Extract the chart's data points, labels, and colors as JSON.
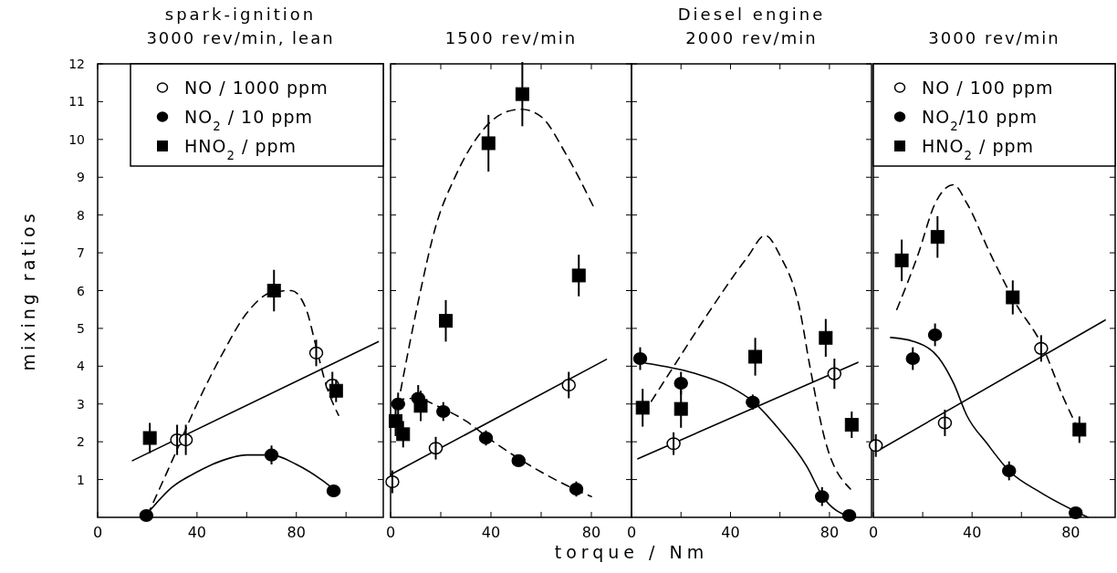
{
  "chart_data": [
    {
      "type": "scatter",
      "title": "spark-ignition",
      "subtitle": "3000 rev/min, lean",
      "ylabel": "mixing ratios",
      "xlim": [
        0,
        115
      ],
      "xticks": [
        0,
        {
          "value": 20,
          "label": null
        },
        40,
        {
          "value": 60,
          "label": null
        },
        80,
        {
          "value": 100,
          "label": null
        }
      ],
      "ylim": [
        0,
        12
      ],
      "yticks": [
        1,
        2,
        3,
        4,
        5,
        6,
        7,
        8,
        9,
        10,
        11,
        12
      ],
      "legend": "top right",
      "series": [
        {
          "type": "line",
          "color": "#000000",
          "line_style": "solid",
          "x": [
            14,
            113
          ],
          "values": [
            1.5,
            4.65
          ]
        },
        {
          "type": "line",
          "color": "#000000",
          "line_style": "solid",
          "x": [
            20,
            30,
            40,
            50,
            60,
            70,
            80,
            90,
            95
          ],
          "values": [
            0.1,
            0.8,
            1.2,
            1.5,
            1.65,
            1.65,
            1.4,
            1.0,
            0.75
          ]
        },
        {
          "type": "line",
          "color": "#000000",
          "line_style": "dashed",
          "x": [
            20,
            30,
            40,
            50,
            60,
            70,
            78,
            84,
            88,
            92,
            97
          ],
          "values": [
            0.05,
            1.5,
            3.0,
            4.3,
            5.4,
            5.95,
            6.0,
            5.5,
            4.5,
            3.5,
            2.7
          ]
        },
        {
          "name": "NO / 1000 ppm",
          "color": "#ffffff",
          "marker": "circle",
          "x": [
            32,
            35.5,
            88,
            94.5
          ],
          "values": [
            2.05,
            2.05,
            4.35,
            3.5
          ],
          "errors": [
            0.4,
            0.4,
            0.35,
            0.35
          ]
        },
        {
          "name": "NO$_{2}$ / 10 ppm",
          "color": "#000000",
          "marker": "circle",
          "x": [
            19.6,
            70,
            95
          ],
          "values": [
            0.05,
            1.65,
            0.7
          ],
          "errors": [
            null,
            0.25,
            0.15
          ]
        },
        {
          "name": "HNO$_{2}$ / ppm",
          "color": "#000000",
          "marker": "square",
          "x": [
            21,
            71,
            96
          ],
          "values": [
            2.1,
            6.0,
            3.35
          ],
          "errors": [
            0.4,
            0.55,
            0.3
          ]
        }
      ]
    },
    {
      "type": "scatter",
      "subtitle": "1500 rev/min",
      "xlabel": "torque / Nm",
      "xlim": [
        0,
        96
      ],
      "xticks": [
        0,
        {
          "value": 20,
          "label": null
        },
        40,
        {
          "value": 60,
          "label": null
        },
        80
      ],
      "ylim": [
        0,
        12
      ],
      "yticks": [
        1,
        2,
        3,
        4,
        5,
        6,
        7,
        8,
        9,
        10,
        11,
        12
      ],
      "tick_labels": "x",
      "series": [
        {
          "type": "line",
          "color": "#000000",
          "line_style": "solid",
          "x": [
            0,
            86
          ],
          "values": [
            1.13,
            4.18
          ]
        },
        {
          "type": "line",
          "color": "#000000",
          "line_style": "dashed",
          "x": [
            2,
            10,
            20,
            30,
            40,
            50,
            60,
            70,
            80
          ],
          "values": [
            3.1,
            3.15,
            2.9,
            2.55,
            2.05,
            1.6,
            1.2,
            0.85,
            0.55
          ]
        },
        {
          "type": "line",
          "color": "#000000",
          "line_style": "dashed",
          "x": [
            4,
            11,
            18,
            26,
            35,
            45,
            52,
            60,
            70,
            81
          ],
          "values": [
            3.35,
            5.7,
            7.7,
            9.05,
            10.1,
            10.7,
            10.8,
            10.6,
            9.6,
            8.2
          ]
        },
        {
          "color": "#ffffff",
          "marker": "circle",
          "x": [
            0.7,
            18,
            71
          ],
          "values": [
            0.94,
            1.83,
            3.5
          ],
          "errors": [
            0.3,
            0.3,
            0.35
          ]
        },
        {
          "color": "#000000",
          "marker": "circle",
          "x": [
            3,
            11,
            21,
            38,
            51,
            74
          ],
          "values": [
            3.0,
            3.15,
            2.8,
            2.1,
            1.5,
            0.75
          ],
          "errors": [
            0.3,
            0.35,
            0.25,
            0.2,
            0.15,
            0.2
          ]
        },
        {
          "color": "#000000",
          "marker": "square",
          "x": [
            2,
            5,
            12,
            22,
            39,
            52.5,
            75
          ],
          "values": [
            2.55,
            2.2,
            2.95,
            5.2,
            9.9,
            11.2,
            6.4
          ],
          "errors": [
            0.4,
            0.35,
            0.4,
            0.55,
            0.75,
            0.85,
            0.55
          ]
        }
      ]
    },
    {
      "type": "scatter",
      "title": "Diesel engine",
      "subtitle": "2000 rev/min",
      "xlim": [
        0,
        97
      ],
      "xticks": [
        0,
        {
          "value": 20,
          "label": null
        },
        40,
        {
          "value": 60,
          "label": null
        },
        80
      ],
      "ylim": [
        0,
        12
      ],
      "yticks": [
        1,
        2,
        3,
        4,
        5,
        6,
        7,
        8,
        9,
        10,
        11,
        12
      ],
      "tick_labels": "x",
      "series": [
        {
          "type": "line",
          "color": "#000000",
          "line_style": "solid",
          "x": [
            2.6,
            91.5
          ],
          "values": [
            1.55,
            4.1
          ]
        },
        {
          "type": "line",
          "color": "#000000",
          "line_style": "solid",
          "x": [
            5.5,
            25,
            40,
            49,
            60,
            71,
            77,
            88.5
          ],
          "values": [
            4.08,
            3.82,
            3.45,
            3.07,
            2.3,
            1.33,
            0.58,
            0
          ]
        },
        {
          "type": "line",
          "color": "#000000",
          "line_style": "dashed",
          "x": [
            8,
            17.4,
            32,
            47,
            54,
            60,
            68,
            72,
            78,
            88.5
          ],
          "values": [
            3.07,
            4.03,
            5.5,
            6.9,
            7.46,
            6.93,
            5.5,
            4.03,
            2.1,
            0.75
          ]
        },
        {
          "color": "#ffffff",
          "marker": "circle",
          "x": [
            17,
            82
          ],
          "values": [
            1.95,
            3.8
          ],
          "errors": [
            0.3,
            0.4
          ]
        },
        {
          "color": "#000000",
          "marker": "circle",
          "x": [
            3.5,
            20,
            49,
            77,
            88
          ],
          "values": [
            4.2,
            3.55,
            3.05,
            0.55,
            0.05
          ],
          "errors": [
            0.3,
            0.3,
            0.2,
            0.25,
            null
          ]
        },
        {
          "color": "#000000",
          "marker": "square",
          "x": [
            4.5,
            20,
            50,
            78.5,
            89
          ],
          "values": [
            2.9,
            2.87,
            4.25,
            4.75,
            2.45
          ],
          "errors": [
            0.5,
            0.5,
            0.5,
            0.5,
            0.35
          ]
        }
      ]
    },
    {
      "type": "scatter",
      "subtitle": "3000 rev/min",
      "xlim": [
        0,
        98
      ],
      "xticks": [
        0,
        {
          "value": 20,
          "label": null
        },
        40,
        {
          "value": 60,
          "label": null
        },
        80
      ],
      "ylim": [
        0,
        12
      ],
      "yticks": [
        1,
        2,
        3,
        4,
        5,
        6,
        7,
        8,
        9,
        10,
        11,
        12
      ],
      "tick_labels": "x",
      "legend": "top",
      "series": [
        {
          "type": "line",
          "color": "#000000",
          "line_style": "solid",
          "x": [
            1.5,
            94
          ],
          "values": [
            1.75,
            5.22
          ]
        },
        {
          "type": "line",
          "color": "#000000",
          "line_style": "solid",
          "x": [
            7,
            16,
            26.5,
            32.5,
            38,
            46,
            55,
            68,
            87
          ],
          "values": [
            4.76,
            4.66,
            4.22,
            3.55,
            2.68,
            1.96,
            1.23,
            0.65,
            0
          ]
        },
        {
          "type": "line",
          "color": "#000000",
          "line_style": "dashed",
          "x": [
            9.5,
            18,
            25,
            32.5,
            38,
            47,
            57.5,
            68,
            77,
            82.5
          ],
          "values": [
            5.5,
            6.93,
            8.3,
            8.8,
            8.3,
            7.03,
            5.68,
            4.6,
            3.17,
            2.4
          ]
        },
        {
          "name": "NO / 100 ppm",
          "color": "#ffffff",
          "marker": "circle",
          "x": [
            1,
            29,
            68
          ],
          "values": [
            1.9,
            2.5,
            4.47
          ],
          "errors": [
            0.3,
            0.35,
            0.35
          ]
        },
        {
          "name": "NO$_{2}$/10 ppm",
          "color": "#000000",
          "marker": "circle",
          "x": [
            16,
            25,
            55,
            82
          ],
          "values": [
            4.2,
            4.83,
            1.23,
            0.12
          ],
          "errors": [
            0.3,
            0.3,
            0.25,
            0.1
          ]
        },
        {
          "name": "HNO$_{2}$ / ppm",
          "color": "#000000",
          "marker": "square",
          "x": [
            11.5,
            26,
            56.5,
            83.5
          ],
          "values": [
            6.8,
            7.42,
            5.82,
            2.32
          ],
          "errors": [
            0.55,
            0.55,
            0.45,
            0.35
          ]
        }
      ]
    }
  ]
}
